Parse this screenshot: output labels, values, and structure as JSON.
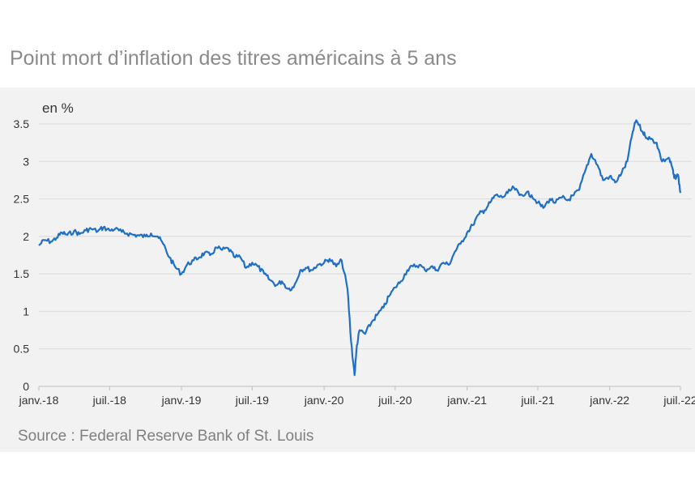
{
  "title": "Point mort d’inflation des titres américains à 5 ans",
  "source": "Source : Federal Reserve Bank of St. Louis",
  "colors": {
    "line": "#1f6fc5",
    "grid": "#d9d9d9",
    "panel": "#f2f2f2",
    "title": "#8a8a8a"
  },
  "chart_data": {
    "type": "line",
    "ylabel": "en %",
    "ylim": [
      0,
      3.5
    ],
    "yticks": [
      "0",
      "0.5",
      "1",
      "1.5",
      "2",
      "2.5",
      "3",
      "3.5"
    ],
    "xticks": [
      "janv.-18",
      "juil.-18",
      "janv.-19",
      "juil.-19",
      "janv.-20",
      "juil.-20",
      "janv.-21",
      "juil.-21",
      "janv.-22",
      "juil.-22"
    ],
    "grid": true,
    "series": [
      {
        "x": [
          "2018-01-01",
          "2018-01-15",
          "2018-02-01",
          "2018-02-15",
          "2018-03-01",
          "2018-03-15",
          "2018-04-01",
          "2018-04-15",
          "2018-05-01",
          "2018-05-15",
          "2018-06-01",
          "2018-06-15",
          "2018-07-01",
          "2018-07-15",
          "2018-08-01",
          "2018-08-15",
          "2018-09-01",
          "2018-09-15",
          "2018-10-01",
          "2018-10-15",
          "2018-11-01",
          "2018-11-15",
          "2018-12-01",
          "2018-12-15",
          "2019-01-01",
          "2019-01-15",
          "2019-02-01",
          "2019-02-15",
          "2019-03-01",
          "2019-03-15",
          "2019-04-01",
          "2019-04-15",
          "2019-05-01",
          "2019-05-15",
          "2019-06-01",
          "2019-06-15",
          "2019-07-01",
          "2019-07-15",
          "2019-08-01",
          "2019-08-15",
          "2019-09-01",
          "2019-09-15",
          "2019-10-01",
          "2019-10-15",
          "2019-11-01",
          "2019-11-15",
          "2019-12-01",
          "2019-12-15",
          "2020-01-01",
          "2020-01-15",
          "2020-02-01",
          "2020-02-15",
          "2020-03-01",
          "2020-03-10",
          "2020-03-19",
          "2020-03-25",
          "2020-04-01",
          "2020-04-15",
          "2020-05-01",
          "2020-05-15",
          "2020-06-01",
          "2020-06-15",
          "2020-07-01",
          "2020-07-15",
          "2020-08-01",
          "2020-08-15",
          "2020-09-01",
          "2020-09-15",
          "2020-10-01",
          "2020-10-15",
          "2020-11-01",
          "2020-11-15",
          "2020-12-01",
          "2020-12-15",
          "2021-01-01",
          "2021-01-15",
          "2021-02-01",
          "2021-02-15",
          "2021-03-01",
          "2021-03-15",
          "2021-04-01",
          "2021-04-15",
          "2021-05-01",
          "2021-05-15",
          "2021-06-01",
          "2021-06-15",
          "2021-07-01",
          "2021-07-15",
          "2021-08-01",
          "2021-08-15",
          "2021-09-01",
          "2021-09-15",
          "2021-10-01",
          "2021-10-15",
          "2021-11-01",
          "2021-11-15",
          "2021-12-01",
          "2021-12-15",
          "2022-01-01",
          "2022-01-15",
          "2022-02-01",
          "2022-02-15",
          "2022-03-01",
          "2022-03-10",
          "2022-03-25",
          "2022-04-01",
          "2022-04-15",
          "2022-05-01",
          "2022-05-15",
          "2022-06-01",
          "2022-06-10",
          "2022-06-15",
          "2022-06-25",
          "2022-07-01"
        ],
        "values": [
          1.88,
          1.95,
          1.93,
          1.98,
          2.05,
          2.02,
          2.07,
          2.03,
          2.08,
          2.1,
          2.07,
          2.12,
          2.08,
          2.1,
          2.06,
          2.04,
          2.02,
          2.01,
          2.0,
          2.04,
          2.0,
          1.9,
          1.72,
          1.6,
          1.5,
          1.62,
          1.68,
          1.72,
          1.78,
          1.75,
          1.85,
          1.82,
          1.84,
          1.73,
          1.72,
          1.58,
          1.65,
          1.6,
          1.5,
          1.42,
          1.35,
          1.4,
          1.3,
          1.32,
          1.55,
          1.58,
          1.55,
          1.62,
          1.65,
          1.7,
          1.6,
          1.68,
          1.3,
          0.6,
          0.15,
          0.55,
          0.75,
          0.7,
          0.85,
          0.95,
          1.05,
          1.2,
          1.32,
          1.4,
          1.55,
          1.6,
          1.62,
          1.55,
          1.6,
          1.55,
          1.65,
          1.62,
          1.8,
          1.9,
          2.05,
          2.15,
          2.3,
          2.35,
          2.45,
          2.55,
          2.52,
          2.58,
          2.65,
          2.55,
          2.58,
          2.55,
          2.45,
          2.38,
          2.5,
          2.45,
          2.52,
          2.48,
          2.55,
          2.62,
          2.9,
          3.1,
          2.95,
          2.75,
          2.8,
          2.72,
          2.85,
          3.0,
          3.4,
          3.55,
          3.4,
          3.35,
          3.3,
          3.25,
          3.0,
          3.05,
          2.92,
          2.78,
          2.82,
          2.58
        ]
      }
    ]
  }
}
